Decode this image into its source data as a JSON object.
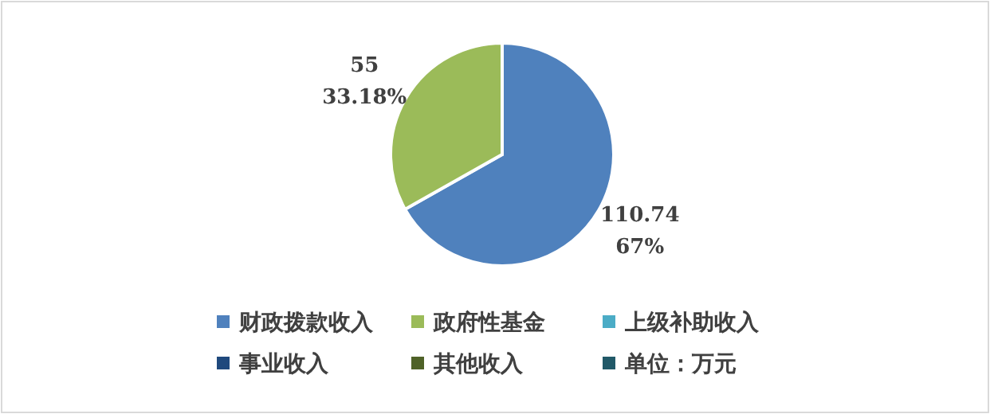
{
  "chart_data": {
    "type": "pie",
    "categories": [
      "财政拨款收入",
      "政府性基金",
      "上级补助收入",
      "事业收入",
      "其他收入",
      "单位：万元"
    ],
    "values": [
      110.74,
      55,
      0,
      0,
      0,
      0
    ],
    "colors": [
      "#4f81bd",
      "#9bbb59",
      "#4bacc6",
      "#1f497d",
      "#4f6228",
      "#215968"
    ],
    "value_labels": [
      "110.74\n67%",
      "55\n33.18%",
      null,
      null,
      null,
      null
    ],
    "legend": "bottom"
  }
}
